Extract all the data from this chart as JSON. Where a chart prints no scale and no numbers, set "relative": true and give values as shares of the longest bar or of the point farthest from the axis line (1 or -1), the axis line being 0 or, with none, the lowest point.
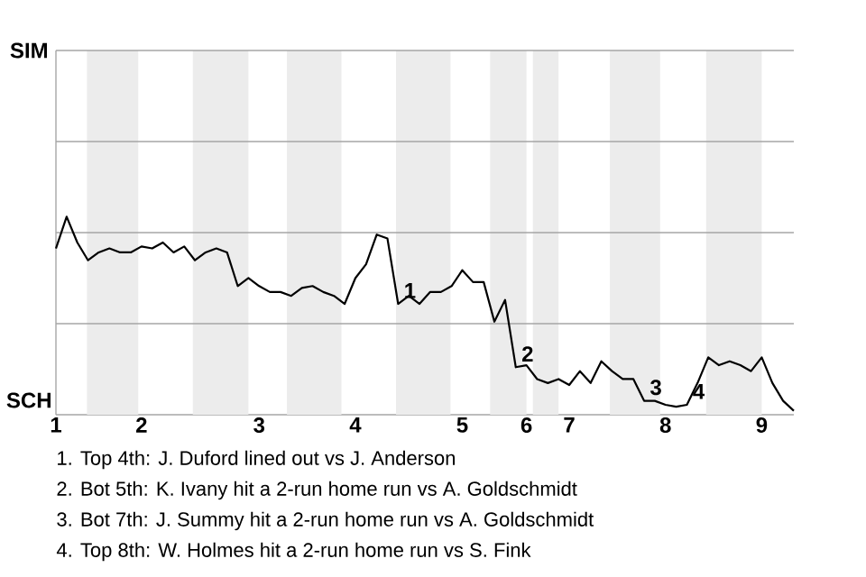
{
  "chart_data": {
    "type": "line",
    "relative": true,
    "categories": [
      "1",
      null,
      null,
      null,
      null,
      null,
      null,
      null,
      "2",
      null,
      null,
      null,
      null,
      null,
      null,
      null,
      null,
      null,
      null,
      "3",
      null,
      null,
      null,
      null,
      null,
      null,
      null,
      null,
      "4",
      null,
      null,
      null,
      null,
      null,
      null,
      null,
      null,
      null,
      "5",
      null,
      null,
      null,
      null,
      null,
      "6",
      null,
      null,
      null,
      "7",
      null,
      null,
      null,
      null,
      null,
      null,
      null,
      null,
      "8",
      null,
      null,
      null,
      null,
      null,
      null,
      null,
      null,
      "9",
      null,
      null,
      null
    ],
    "values": [
      0.84,
      1,
      0.87,
      0.78,
      0.82,
      0.84,
      0.82,
      0.82,
      0.85,
      0.84,
      0.87,
      0.82,
      0.85,
      0.78,
      0.82,
      0.84,
      0.82,
      0.65,
      0.69,
      0.65,
      0.62,
      0.62,
      0.6,
      0.64,
      0.65,
      0.62,
      0.6,
      0.56,
      0.69,
      0.76,
      0.91,
      0.89,
      0.56,
      0.6,
      0.56,
      0.62,
      0.62,
      0.65,
      0.73,
      0.67,
      0.67,
      0.47,
      0.58,
      0.24,
      0.25,
      0.18,
      0.16,
      0.18,
      0.15,
      0.22,
      0.16,
      0.27,
      0.22,
      0.18,
      0.18,
      0.07,
      0.07,
      0.05,
      0.04,
      0.05,
      0.16,
      0.29,
      0.25,
      0.27,
      0.25,
      0.22,
      0.29,
      0.16,
      0.07,
      0.02
    ],
    "color": "#000000",
    "ref_lines": [
      {
        "axis": "y",
        "value": 0.46,
        "color": "#a6a6a6"
      },
      {
        "axis": "y",
        "value": 0.92,
        "color": "#a6a6a6"
      },
      {
        "axis": "y",
        "value": 1.38,
        "color": "#a6a6a6"
      },
      {
        "axis": "y",
        "value": 1.84,
        "color": "#a6a6a6"
      }
    ],
    "annotations": [
      "1",
      "2",
      "3",
      "4",
      "SIM",
      "SCH",
      "1. Top 4th: J. Duford lined out vs J. Anderson",
      "2. Bot 5th: K. Ivany hit a 2-run home run vs A. Goldschmidt",
      "3. Bot 7th: J. Summy hit a 2-run home run vs A. Goldschmidt",
      "4. Top 8th: W. Holmes hit a 2-run home run vs S. Fink"
    ]
  }
}
